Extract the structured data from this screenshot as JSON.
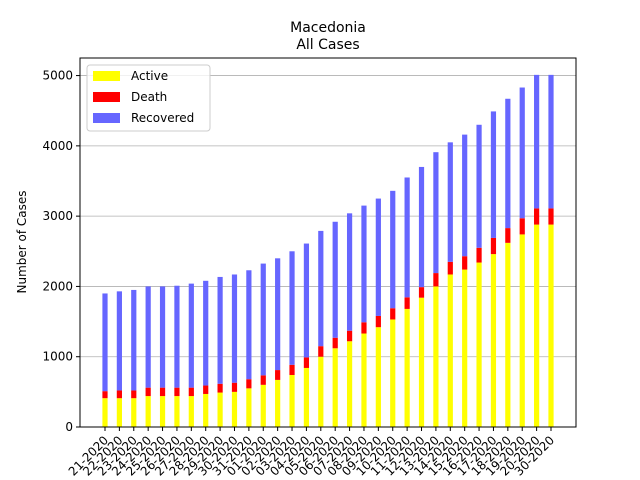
{
  "chart_data": {
    "type": "bar",
    "stacked": true,
    "title": [
      "Macedonia",
      "All Cases"
    ],
    "xlabel": "",
    "ylabel": "Number of Cases",
    "ylim": [
      0,
      5250
    ],
    "yticks": [
      0,
      1000,
      2000,
      3000,
      4000,
      5000
    ],
    "grid": "y",
    "legend": "top-left",
    "categories": [
      "21-2020",
      "22-2020",
      "23-2020",
      "24-2020",
      "25-2020",
      "26-2020",
      "27-2020",
      "28-2020",
      "29-2020",
      "30-2020",
      "31-2020",
      "01-2020",
      "02-2020",
      "03-2020",
      "04-2020",
      "05-2020",
      "06-2020",
      "07-2020",
      "08-2020",
      "09-2020",
      "10-2020",
      "11-2020",
      "12-2020",
      "13-2020",
      "14-2020",
      "15-2020",
      "16-2020",
      "17-2020",
      "18-2020",
      "19-2020",
      "20-2020",
      "30-2020"
    ],
    "series": [
      {
        "name": "Active",
        "color": "#ffff00",
        "values": [
          410,
          410,
          410,
          440,
          440,
          440,
          440,
          470,
          490,
          500,
          550,
          600,
          670,
          740,
          840,
          1000,
          1120,
          1220,
          1330,
          1420,
          1530,
          1680,
          1840,
          2000,
          2170,
          2240,
          2340,
          2460,
          2620,
          2740,
          2880,
          2880
        ]
      },
      {
        "name": "Death",
        "color": "#ff0000",
        "values": [
          100,
          110,
          110,
          120,
          120,
          120,
          120,
          120,
          125,
          130,
          130,
          135,
          140,
          145,
          150,
          150,
          150,
          150,
          160,
          160,
          160,
          165,
          150,
          190,
          180,
          190,
          210,
          230,
          210,
          230,
          230,
          230
        ]
      },
      {
        "name": "Recovered",
        "color": "#6666ff",
        "values": [
          1390,
          1410,
          1430,
          1440,
          1440,
          1450,
          1480,
          1490,
          1520,
          1540,
          1550,
          1590,
          1590,
          1615,
          1620,
          1640,
          1650,
          1670,
          1660,
          1670,
          1670,
          1705,
          1710,
          1720,
          1700,
          1730,
          1750,
          1800,
          1840,
          1860,
          1900,
          1900
        ]
      }
    ]
  }
}
